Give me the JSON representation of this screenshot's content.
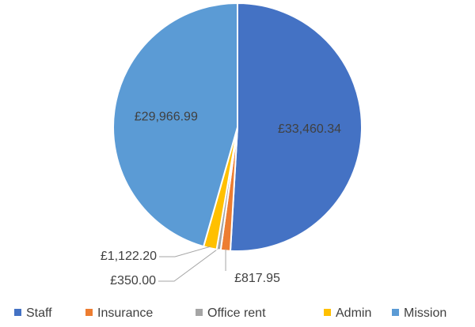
{
  "chart_data": {
    "type": "pie",
    "categories": [
      "Staff",
      "Insurance",
      "Office rent",
      "Admin",
      "Mission"
    ],
    "values": [
      33460.34,
      817.95,
      350.0,
      1122.2,
      29966.99
    ],
    "value_labels": [
      "£33,460.34",
      "£817.95",
      "£350.00",
      "£1,122.20",
      "£29,966.99"
    ],
    "colors": [
      "#4472c4",
      "#ed7d31",
      "#a5a5a5",
      "#ffc000",
      "#5b9bd5"
    ],
    "legend": "bottom"
  }
}
